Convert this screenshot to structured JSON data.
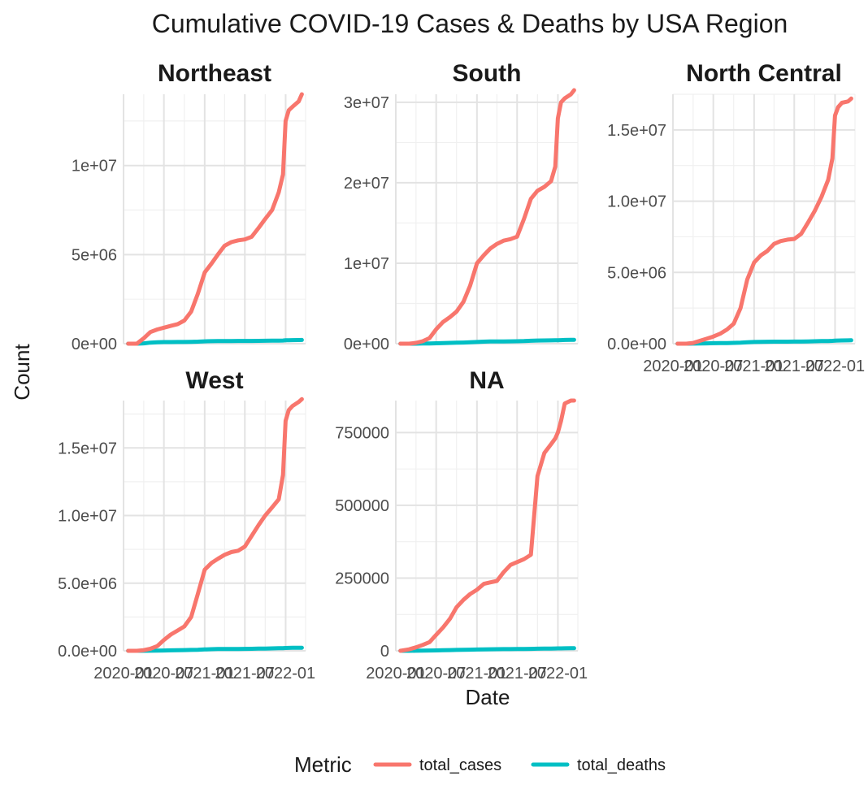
{
  "chart_data": {
    "type": "line",
    "title": "Cumulative COVID-19 Cases & Deaths by USA Region",
    "xlabel": "Date",
    "ylabel": "Count",
    "x_tick_labels": [
      "2020-01",
      "2020-07",
      "2021-01",
      "2021-07",
      "2022-01"
    ],
    "xlim": [
      "2020-01-01",
      "2022-04-01"
    ],
    "legend": {
      "title": "Metric",
      "position": "bottom",
      "entries": [
        {
          "name": "total_cases",
          "color": "#F8766D"
        },
        {
          "name": "total_deaths",
          "color": "#00BFC4"
        }
      ]
    },
    "grid": true,
    "x_dates": [
      "2020-01-22",
      "2020-03-01",
      "2020-04-01",
      "2020-05-01",
      "2020-06-01",
      "2020-07-01",
      "2020-08-01",
      "2020-09-01",
      "2020-10-01",
      "2020-11-01",
      "2020-12-01",
      "2021-01-01",
      "2021-02-01",
      "2021-03-01",
      "2021-04-01",
      "2021-05-01",
      "2021-06-01",
      "2021-07-01",
      "2021-08-01",
      "2021-09-01",
      "2021-10-01",
      "2021-11-01",
      "2021-12-01",
      "2021-12-20",
      "2022-01-01",
      "2022-01-15",
      "2022-02-01",
      "2022-03-01",
      "2022-03-15"
    ],
    "panels": [
      {
        "name": "Northeast",
        "ylim": [
          0,
          14000000
        ],
        "y_tick_values": [
          0,
          5000000,
          10000000
        ],
        "y_tick_labels": [
          "0e+00",
          "5e+06",
          "1e+07"
        ],
        "series": [
          {
            "name": "total_cases",
            "values": [
              0,
              0,
              300000,
              650000,
              800000,
              900000,
              1000000,
              1100000,
              1300000,
              1800000,
              2800000,
              4000000,
              4500000,
              5000000,
              5500000,
              5700000,
              5800000,
              5850000,
              6000000,
              6500000,
              7000000,
              7500000,
              8500000,
              9500000,
              12500000,
              13100000,
              13300000,
              13600000,
              14000000
            ]
          },
          {
            "name": "total_deaths",
            "values": [
              0,
              0,
              20000,
              60000,
              80000,
              90000,
              92000,
              95000,
              98000,
              105000,
              115000,
              130000,
              140000,
              145000,
              150000,
              152000,
              153000,
              154000,
              156000,
              160000,
              165000,
              170000,
              175000,
              180000,
              190000,
              195000,
              200000,
              205000,
              210000
            ]
          }
        ]
      },
      {
        "name": "South",
        "ylim": [
          0,
          31000000
        ],
        "y_tick_values": [
          0,
          10000000,
          20000000,
          30000000
        ],
        "y_tick_labels": [
          "0e+00",
          "1e+07",
          "2e+07",
          "3e+07"
        ],
        "series": [
          {
            "name": "total_cases",
            "values": [
              0,
              0,
              100000,
              300000,
              700000,
              1800000,
              2700000,
              3300000,
              4000000,
              5200000,
              7200000,
              10000000,
              11000000,
              11800000,
              12400000,
              12800000,
              13000000,
              13300000,
              15500000,
              18000000,
              19000000,
              19500000,
              20200000,
              22000000,
              28000000,
              30000000,
              30500000,
              31000000,
              31500000
            ]
          },
          {
            "name": "total_deaths",
            "values": [
              0,
              0,
              5000,
              20000,
              35000,
              50000,
              75000,
              100000,
              120000,
              140000,
              170000,
              210000,
              250000,
              270000,
              280000,
              285000,
              290000,
              300000,
              320000,
              360000,
              390000,
              400000,
              410000,
              420000,
              430000,
              440000,
              460000,
              470000,
              480000
            ]
          }
        ]
      },
      {
        "name": "North Central",
        "ylim": [
          0,
          17500000
        ],
        "y_tick_values": [
          0,
          5000000,
          10000000,
          15000000
        ],
        "y_tick_labels": [
          "0.0e+00",
          "5.0e+06",
          "1.0e+07",
          "1.5e+07"
        ],
        "series": [
          {
            "name": "total_cases",
            "values": [
              0,
              0,
              50000,
              200000,
              350000,
              500000,
              700000,
              1000000,
              1400000,
              2500000,
              4500000,
              5700000,
              6200000,
              6500000,
              7000000,
              7200000,
              7300000,
              7350000,
              7700000,
              8500000,
              9300000,
              10300000,
              11500000,
              13000000,
              16000000,
              16600000,
              16900000,
              17000000,
              17200000
            ]
          },
          {
            "name": "total_deaths",
            "values": [
              0,
              0,
              5000,
              15000,
              25000,
              35000,
              40000,
              45000,
              55000,
              70000,
              95000,
              120000,
              130000,
              135000,
              140000,
              142000,
              144000,
              146000,
              150000,
              160000,
              170000,
              180000,
              190000,
              200000,
              210000,
              220000,
              230000,
              235000,
              240000
            ]
          }
        ]
      },
      {
        "name": "West",
        "ylim": [
          0,
          18500000
        ],
        "y_tick_values": [
          0,
          5000000,
          10000000,
          15000000
        ],
        "y_tick_labels": [
          "0.0e+00",
          "5.0e+06",
          "1.0e+07",
          "1.5e+07"
        ],
        "series": [
          {
            "name": "total_cases",
            "values": [
              0,
              0,
              50000,
              150000,
              350000,
              800000,
              1200000,
              1500000,
              1800000,
              2500000,
              4200000,
              6000000,
              6500000,
              6800000,
              7100000,
              7300000,
              7400000,
              7700000,
              8500000,
              9300000,
              10000000,
              10600000,
              11200000,
              13000000,
              17000000,
              17800000,
              18100000,
              18400000,
              18600000
            ]
          },
          {
            "name": "total_deaths",
            "values": [
              0,
              0,
              2000,
              8000,
              15000,
              25000,
              35000,
              45000,
              55000,
              65000,
              80000,
              100000,
              120000,
              130000,
              135000,
              138000,
              140000,
              142000,
              150000,
              160000,
              170000,
              180000,
              190000,
              200000,
              210000,
              215000,
              220000,
              225000,
              230000
            ]
          }
        ]
      },
      {
        "name": "NA",
        "ylim": [
          0,
          860000
        ],
        "y_tick_values": [
          0,
          250000,
          500000,
          750000
        ],
        "y_tick_labels": [
          "0",
          "250000",
          "500000",
          "750000"
        ],
        "series": [
          {
            "name": "total_cases",
            "values": [
              0,
              5000,
              12000,
              20000,
              30000,
              55000,
              80000,
              110000,
              150000,
              175000,
              195000,
              210000,
              230000,
              235000,
              240000,
              270000,
              295000,
              305000,
              315000,
              330000,
              600000,
              680000,
              710000,
              730000,
              750000,
              790000,
              850000,
              860000,
              860000
            ]
          },
          {
            "name": "total_deaths",
            "values": [
              0,
              100,
              300,
              600,
              1000,
              1500,
              2000,
              2500,
              3000,
              3500,
              4000,
              4500,
              5000,
              5300,
              5600,
              5800,
              6000,
              6200,
              6500,
              6800,
              7200,
              7500,
              7800,
              8000,
              8300,
              8500,
              8700,
              8800,
              9000
            ]
          }
        ]
      }
    ]
  }
}
